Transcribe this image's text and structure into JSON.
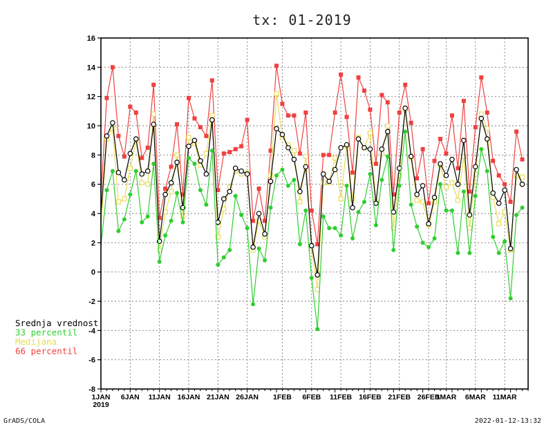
{
  "footer": {
    "left": "GrADS/COLA",
    "right": "2022-01-12-13:32"
  },
  "legend": {
    "position": "left"
  },
  "chart_data": {
    "type": "line",
    "title": "tx:  01-2019",
    "xlabel": "",
    "ylabel": "",
    "ylim": [
      -8,
      16
    ],
    "yticks": [
      -8,
      -6,
      -4,
      -2,
      0,
      2,
      4,
      6,
      8,
      10,
      12,
      14,
      16
    ],
    "xlim": [
      1,
      74
    ],
    "grid": true,
    "x_ticks": [
      {
        "x": 1,
        "label": "1JAN",
        "sublabel": "2019"
      },
      {
        "x": 6,
        "label": "6JAN"
      },
      {
        "x": 11,
        "label": "11JAN"
      },
      {
        "x": 16,
        "label": "16JAN"
      },
      {
        "x": 21,
        "label": "21JAN"
      },
      {
        "x": 26,
        "label": "26JAN"
      },
      {
        "x": 32,
        "label": "1FEB"
      },
      {
        "x": 37,
        "label": "6FEB"
      },
      {
        "x": 42,
        "label": "11FEB"
      },
      {
        "x": 47,
        "label": "16FEB"
      },
      {
        "x": 52,
        "label": "21FEB"
      },
      {
        "x": 57,
        "label": "26FEB"
      },
      {
        "x": 60,
        "label": "1MAR"
      },
      {
        "x": 65,
        "label": "6MAR"
      },
      {
        "x": 70,
        "label": "11MAR"
      }
    ],
    "series": [
      {
        "name": "66 percentil",
        "color": "#f04040",
        "marker": "filled-square",
        "values": [
          5.2,
          11.9,
          14.0,
          9.3,
          7.9,
          11.3,
          10.9,
          7.8,
          8.5,
          12.8,
          3.7,
          5.7,
          7.2,
          10.1,
          5.3,
          11.9,
          10.5,
          9.9,
          9.3,
          13.1,
          5.6,
          8.1,
          8.2,
          8.4,
          8.6,
          10.4,
          3.5,
          5.7,
          3.5,
          8.3,
          14.1,
          11.5,
          10.7,
          10.7,
          8.1,
          10.9,
          4.2,
          1.9,
          8.0,
          8.0,
          10.9,
          13.5,
          10.6,
          6.8,
          13.3,
          12.4,
          11.1,
          7.4,
          12.1,
          11.6,
          5.3,
          10.9,
          12.8,
          10.2,
          6.4,
          8.4,
          4.7,
          7.6,
          9.1,
          8.1,
          10.7,
          7.1,
          11.7,
          5.5,
          9.9,
          13.3,
          10.9,
          7.6,
          6.6,
          6.0,
          4.8,
          9.6,
          7.7
        ]
      },
      {
        "name": "Medijana",
        "color": "#e8dc5a",
        "marker": "open-square",
        "values": [
          3.0,
          9.1,
          9.8,
          4.8,
          5.0,
          7.1,
          9.0,
          6.1,
          6.0,
          10.8,
          1.5,
          4.1,
          5.5,
          8.0,
          3.8,
          9.2,
          8.8,
          7.3,
          8.1,
          10.7,
          2.4,
          4.3,
          5.8,
          6.9,
          6.7,
          6.8,
          1.5,
          3.5,
          2.4,
          6.6,
          12.2,
          9.2,
          8.7,
          8.3,
          4.8,
          7.9,
          1.6,
          -1.2,
          6.1,
          6.1,
          7.8,
          5.0,
          8.6,
          5.0,
          9.2,
          8.5,
          9.5,
          4.8,
          8.1,
          10.0,
          3.0,
          6.6,
          11.1,
          7.8,
          4.9,
          4.8,
          3.2,
          4.8,
          7.3,
          5.8,
          6.1,
          4.9,
          7.9,
          3.0,
          6.7,
          10.8,
          9.8,
          5.1,
          3.3,
          4.1,
          1.5,
          6.6,
          6.5
        ]
      },
      {
        "name": "Srednja vrednost",
        "color": "#000000",
        "marker": "open-circle",
        "values": [
          4.0,
          9.3,
          10.2,
          6.8,
          6.3,
          8.1,
          9.1,
          6.7,
          6.9,
          10.1,
          2.1,
          5.3,
          6.1,
          7.5,
          4.4,
          8.6,
          9.0,
          7.6,
          6.7,
          10.4,
          3.4,
          5.0,
          5.5,
          7.1,
          6.9,
          6.7,
          1.7,
          4.0,
          2.6,
          6.2,
          9.8,
          9.4,
          8.5,
          7.7,
          5.5,
          7.2,
          1.8,
          -0.2,
          6.7,
          6.2,
          7.0,
          8.5,
          8.7,
          4.4,
          9.1,
          8.5,
          8.4,
          4.7,
          8.4,
          9.6,
          4.1,
          7.1,
          11.2,
          7.9,
          5.3,
          5.9,
          3.3,
          5.1,
          7.4,
          6.6,
          7.7,
          6.0,
          9.0,
          3.9,
          7.2,
          10.5,
          9.1,
          5.4,
          4.7,
          5.6,
          1.6,
          7.0,
          6.0
        ]
      },
      {
        "name": "33 percentil",
        "color": "#2fce2f",
        "marker": "filled-circle",
        "values": [
          1.8,
          5.6,
          6.9,
          2.8,
          3.6,
          5.3,
          6.9,
          3.4,
          3.8,
          7.4,
          0.7,
          2.5,
          3.5,
          5.4,
          3.4,
          7.8,
          7.4,
          5.6,
          4.6,
          8.3,
          0.5,
          1.0,
          1.5,
          5.2,
          3.9,
          3.0,
          -2.2,
          1.6,
          0.8,
          4.4,
          6.6,
          7.0,
          5.9,
          6.3,
          1.9,
          4.2,
          -0.4,
          -3.9,
          3.8,
          3.0,
          3.0,
          2.5,
          5.9,
          2.3,
          4.1,
          4.8,
          6.7,
          3.2,
          6.3,
          7.9,
          1.5,
          5.9,
          9.6,
          4.6,
          3.1,
          2.0,
          1.7,
          2.3,
          6.0,
          4.2,
          4.2,
          1.3,
          5.5,
          1.3,
          5.2,
          8.4,
          6.9,
          2.4,
          1.3,
          2.1,
          -1.8,
          3.9,
          4.4
        ]
      }
    ]
  }
}
